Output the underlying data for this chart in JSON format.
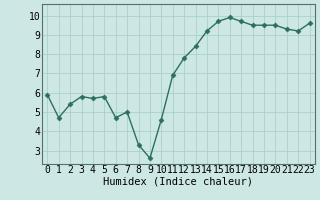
{
  "x": [
    0,
    1,
    2,
    3,
    4,
    5,
    6,
    7,
    8,
    9,
    10,
    11,
    12,
    13,
    14,
    15,
    16,
    17,
    18,
    19,
    20,
    21,
    22,
    23
  ],
  "y": [
    5.9,
    4.7,
    5.4,
    5.8,
    5.7,
    5.8,
    4.7,
    5.0,
    3.3,
    2.6,
    4.6,
    6.9,
    7.8,
    8.4,
    9.2,
    9.7,
    9.9,
    9.7,
    9.5,
    9.5,
    9.5,
    9.3,
    9.2,
    9.6
  ],
  "xlabel": "Humidex (Indice chaleur)",
  "xlim": [
    -0.5,
    23.5
  ],
  "ylim": [
    2.3,
    10.6
  ],
  "yticks": [
    3,
    4,
    5,
    6,
    7,
    8,
    9,
    10
  ],
  "xticks": [
    0,
    1,
    2,
    3,
    4,
    5,
    6,
    7,
    8,
    9,
    10,
    11,
    12,
    13,
    14,
    15,
    16,
    17,
    18,
    19,
    20,
    21,
    22,
    23
  ],
  "line_color": "#2d6e63",
  "marker": "D",
  "marker_size": 2.5,
  "bg_color": "#cde8e4",
  "grid_color": "#aacfcb",
  "xlabel_fontsize": 7.5,
  "tick_fontsize": 7
}
